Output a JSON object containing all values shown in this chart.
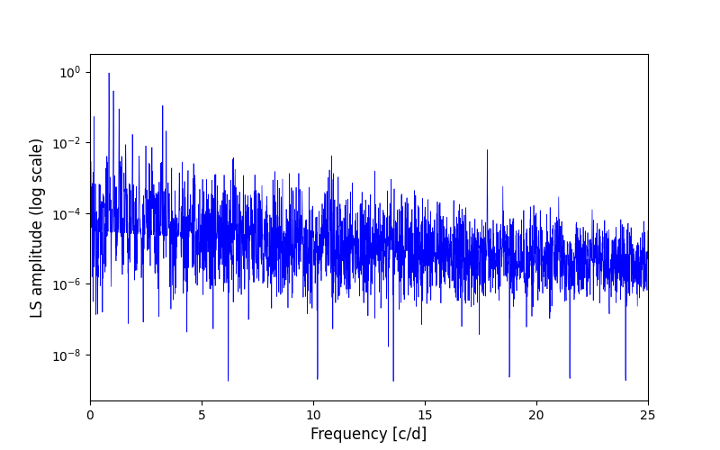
{
  "title": "",
  "xlabel": "Frequency [c/d]",
  "ylabel": "LS amplitude (log scale)",
  "line_color": "#0000FF",
  "line_width": 0.5,
  "xlim": [
    0,
    25
  ],
  "ylim_log_min": -9.3,
  "ylim_log_max": 0.5,
  "xmin": 0.0,
  "xmax": 25.0,
  "n_points": 3000,
  "seed": 12345,
  "background_color": "#ffffff",
  "xticks": [
    0,
    5,
    10,
    15,
    20,
    25
  ],
  "figsize": [
    8.0,
    5.0
  ],
  "dpi": 100
}
